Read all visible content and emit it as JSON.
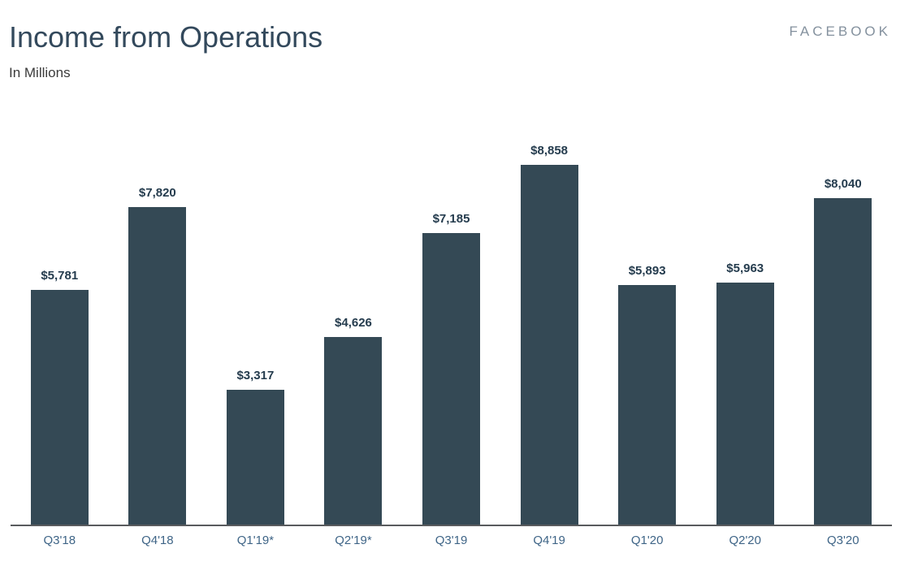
{
  "header": {
    "title": "Income from Operations",
    "subtitle": "In Millions",
    "logo": "FACEBOOK"
  },
  "chart_data": {
    "type": "bar",
    "title": "Income from Operations",
    "subtitle": "In Millions",
    "categories": [
      "Q3'18",
      "Q4'18",
      "Q1'19*",
      "Q2'19*",
      "Q3'19",
      "Q4'19",
      "Q1'20",
      "Q2'20",
      "Q3'20"
    ],
    "values": [
      5781,
      7820,
      3317,
      4626,
      7185,
      8858,
      5893,
      5963,
      8040
    ],
    "value_labels": [
      "$5,781",
      "$7,820",
      "$3,317",
      "$4,626",
      "$7,185",
      "$8,858",
      "$5,893",
      "$5,963",
      "$8,040"
    ],
    "xlabel": "",
    "ylabel": "",
    "ylim": [
      0,
      9000
    ],
    "grid": false,
    "legend_position": "none",
    "bar_color": "#344955",
    "value_label_color": "#253c4e",
    "tick_label_color": "#3f6587",
    "axis_line_color": "#595b5e",
    "title_color": "#33495c",
    "logo_color": "#84919e"
  }
}
